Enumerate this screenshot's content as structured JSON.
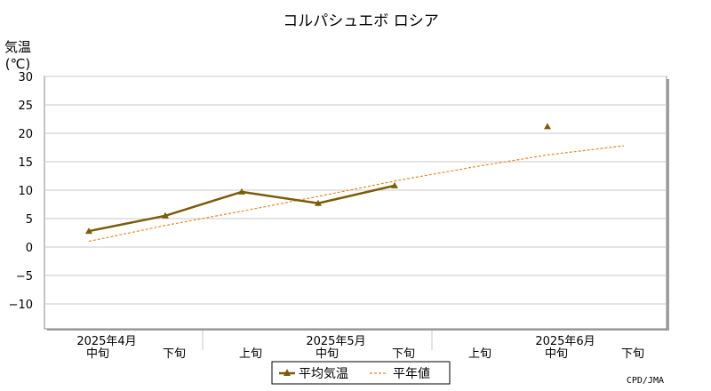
{
  "chart_data": {
    "type": "line",
    "title": "コルパシュエボ ロシア",
    "ylabel_line1": "気温",
    "ylabel_line2": "(℃)",
    "ylim": [
      -15,
      30
    ],
    "yticks": [
      "30",
      "25",
      "20",
      "15",
      "10",
      "5",
      "0",
      "−5",
      "−10"
    ],
    "ytick_values": [
      30,
      25,
      20,
      15,
      10,
      5,
      0,
      -5,
      -10
    ],
    "categories": [
      "中旬",
      "下旬",
      "上旬",
      "中旬",
      "下旬",
      "上旬",
      "中旬",
      "下旬"
    ],
    "months": [
      "2025年4月",
      "2025年5月",
      "2025年6月"
    ],
    "grid": true,
    "series": [
      {
        "name": "平均気温",
        "color": "#7a5c0a",
        "style": "solid-marker-triangle",
        "values": [
          2.8,
          5.5,
          9.7,
          7.7,
          10.8,
          null,
          21.2,
          null
        ]
      },
      {
        "name": "平年値",
        "color": "#e8872a",
        "style": "dashed",
        "values": [
          1.0,
          3.8,
          6.3,
          8.9,
          11.6,
          14.0,
          16.2,
          17.8
        ]
      }
    ],
    "legend_position": "bottom-center",
    "credit": "CPD/JMA"
  }
}
